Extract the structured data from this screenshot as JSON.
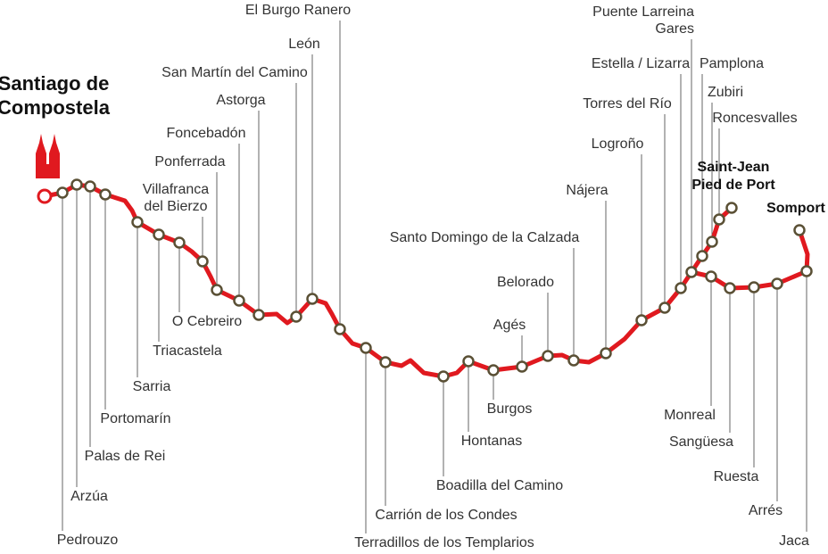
{
  "start": {
    "lines": [
      "Santiago de",
      "Compostela"
    ]
  },
  "stops": [
    {
      "lines": [
        "Pedrouzo"
      ]
    },
    {
      "lines": [
        "Arzúa"
      ]
    },
    {
      "lines": [
        "Palas de Rei"
      ]
    },
    {
      "lines": [
        "Portomarín"
      ]
    },
    {
      "lines": [
        "Sarria"
      ]
    },
    {
      "lines": [
        "Triacastela"
      ]
    },
    {
      "lines": [
        "O Cebreiro"
      ]
    },
    {
      "lines": [
        "Villafranca",
        "del Bierzo"
      ]
    },
    {
      "lines": [
        "Ponferrada"
      ]
    },
    {
      "lines": [
        "Foncebadón"
      ]
    },
    {
      "lines": [
        "Astorga"
      ]
    },
    {
      "lines": [
        "San Martín del Camino"
      ]
    },
    {
      "lines": [
        "León"
      ]
    },
    {
      "lines": [
        "El Burgo Ranero"
      ]
    },
    {
      "lines": [
        "Terradillos de los Templarios"
      ]
    },
    {
      "lines": [
        "Carrión de los Condes"
      ]
    },
    {
      "lines": [
        "Boadilla del Camino"
      ]
    },
    {
      "lines": [
        "Hontanas"
      ]
    },
    {
      "lines": [
        "Burgos"
      ]
    },
    {
      "lines": [
        "Agés"
      ]
    },
    {
      "lines": [
        "Belorado"
      ]
    },
    {
      "lines": [
        "Santo Domingo de la Calzada"
      ]
    },
    {
      "lines": [
        "Nájera"
      ]
    },
    {
      "lines": [
        "Logroño"
      ]
    },
    {
      "lines": [
        "Torres del Río"
      ]
    },
    {
      "lines": [
        "Estella / Lizarra"
      ]
    },
    {
      "lines": [
        "Puente Larreina",
        "Gares"
      ]
    },
    {
      "lines": [
        "Pamplona"
      ]
    },
    {
      "lines": [
        "Zubiri"
      ]
    },
    {
      "lines": [
        "Roncesvalles"
      ]
    },
    {
      "lines": [
        "Monreal"
      ]
    },
    {
      "lines": [
        "Sangüesa"
      ]
    },
    {
      "lines": [
        "Ruesta"
      ]
    },
    {
      "lines": [
        "Arrés"
      ]
    },
    {
      "lines": [
        "Jaca"
      ]
    }
  ],
  "saint_jean": {
    "lines": [
      "Saint-Jean",
      "Pied de Port"
    ]
  },
  "somport": {
    "lines": [
      "Somport"
    ]
  }
}
